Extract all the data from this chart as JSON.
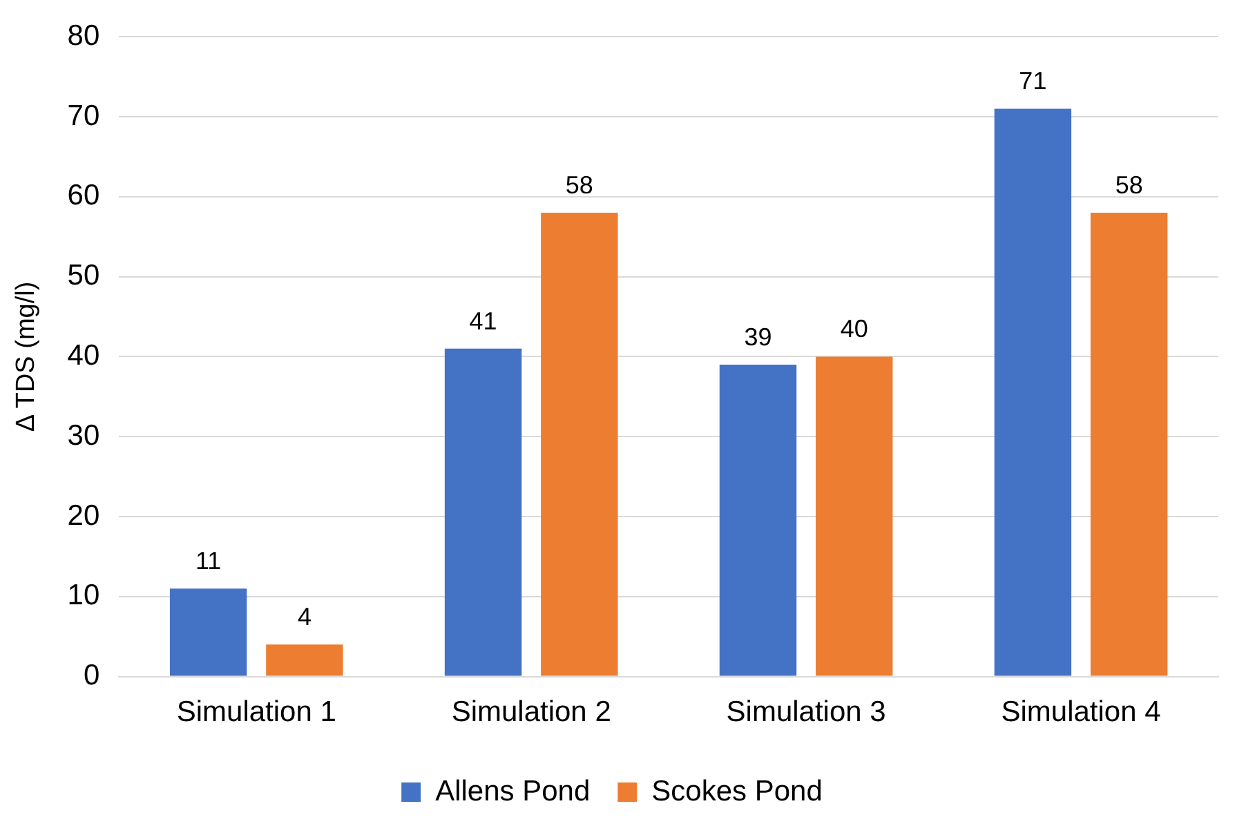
{
  "chart_data": {
    "type": "bar",
    "ylabel": "Δ TDS (mg/l)",
    "categories": [
      "Simulation 1",
      "Simulation 2",
      "Simulation 3",
      "Simulation 4"
    ],
    "series": [
      {
        "name": "Allens Pond",
        "color": "#4472c4",
        "values": [
          11,
          41,
          39,
          71
        ]
      },
      {
        "name": "Scokes Pond",
        "color": "#ed7d31",
        "values": [
          4,
          58,
          40,
          58
        ]
      }
    ],
    "ylim": [
      0,
      80
    ],
    "yticks": [
      0,
      10,
      20,
      30,
      40,
      50,
      60,
      70,
      80
    ],
    "grid": "y",
    "legend": "bottom",
    "data_labels": true
  }
}
